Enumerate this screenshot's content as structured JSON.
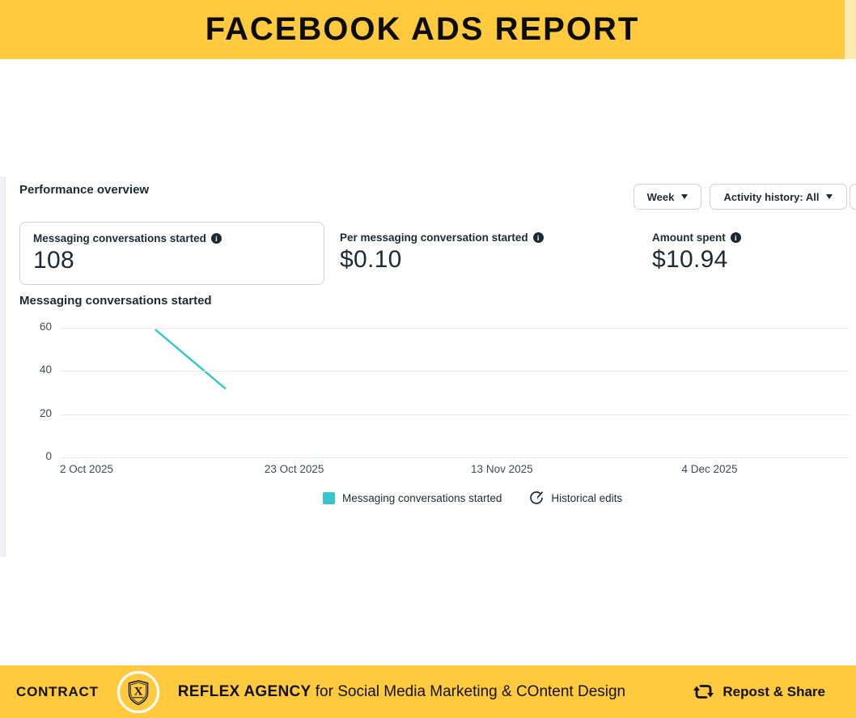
{
  "header": {
    "title": "FACEBOOK ADS REPORT"
  },
  "panel": {
    "title": "Performance overview",
    "filters": {
      "time_granularity": "Week",
      "activity_history": "Activity history: All"
    },
    "metrics": [
      {
        "label": "Messaging conversations started",
        "value": "108",
        "selected": true
      },
      {
        "label": "Per messaging conversation started",
        "value": "$0.10",
        "selected": false
      },
      {
        "label": "Amount spent",
        "value": "$10.94",
        "selected": false
      }
    ],
    "chart_title": "Messaging conversations started",
    "legend": [
      {
        "label": "Messaging conversations started"
      },
      {
        "label": "Historical edits"
      }
    ]
  },
  "chart_data": {
    "type": "line",
    "title": "Messaging conversations started",
    "series": [
      {
        "name": "Messaging conversations started",
        "color": "#35c7cc",
        "points": [
          {
            "date": "9 Oct 2025",
            "day_offset": 7,
            "value": 59
          },
          {
            "date": "16 Oct 2025",
            "day_offset": 14,
            "value": 32
          }
        ]
      }
    ],
    "x_ticks": [
      {
        "label": "2 Oct 2025",
        "day_offset": 0
      },
      {
        "label": "23 Oct 2025",
        "day_offset": 21
      },
      {
        "label": "13 Nov 2025",
        "day_offset": 42
      },
      {
        "label": "4 Dec 2025",
        "day_offset": 63
      }
    ],
    "y_ticks": [
      0,
      20,
      40,
      60
    ],
    "ylim": [
      0,
      60
    ],
    "grid": true,
    "legend_position": "bottom"
  },
  "footer": {
    "contract_label": "CONTRACT",
    "logo_letter": "X",
    "agency_name": "REFLEX AGENCY",
    "agency_tagline": " for Social Media Marketing & COntent Design",
    "repost_label": "Repost & Share"
  },
  "icons": {
    "info": "i"
  },
  "colors": {
    "brand_yellow": "#ffca3e",
    "brand_yellow_light": "#ffe9ae",
    "text_dark": "#1c2b33",
    "accent_teal": "#35c7cc",
    "gridline": "#e6e8eb",
    "border": "#ced0d4"
  }
}
